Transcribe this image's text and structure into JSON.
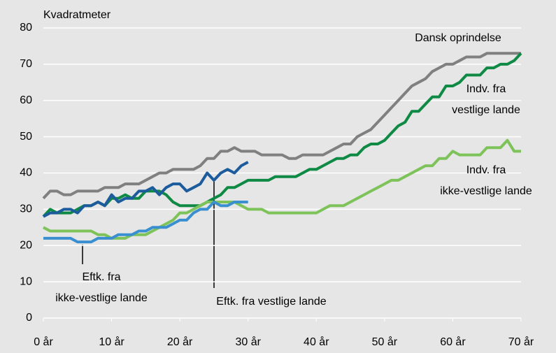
{
  "chart_data": {
    "type": "line",
    "ylabel": "Kvadratmeter",
    "x": [
      0,
      1,
      2,
      3,
      4,
      5,
      6,
      7,
      8,
      9,
      10,
      11,
      12,
      13,
      14,
      15,
      16,
      17,
      18,
      19,
      20,
      21,
      22,
      23,
      24,
      25,
      26,
      27,
      28,
      29,
      30,
      31,
      32,
      33,
      34,
      35,
      36,
      37,
      38,
      39,
      40,
      41,
      42,
      43,
      44,
      45,
      46,
      47,
      48,
      49,
      50,
      51,
      52,
      53,
      54,
      55,
      56,
      57,
      58,
      59,
      60,
      61,
      62,
      63,
      64,
      65,
      66,
      67,
      68,
      69,
      70
    ],
    "xlim": [
      0,
      70
    ],
    "xticks": [
      {
        "value": 0,
        "label": "0 år"
      },
      {
        "value": 10,
        "label": "10 år"
      },
      {
        "value": 20,
        "label": "20 år"
      },
      {
        "value": 30,
        "label": "30 år"
      },
      {
        "value": 40,
        "label": "40 år"
      },
      {
        "value": 50,
        "label": "50 år"
      },
      {
        "value": 60,
        "label": "60 år"
      },
      {
        "value": 70,
        "label": "70 år"
      }
    ],
    "ylim": [
      0,
      80
    ],
    "yticks": [
      0,
      10,
      20,
      30,
      40,
      50,
      60,
      70,
      80
    ],
    "grid": true,
    "series": [
      {
        "name": "Dansk oprindelse",
        "color": "#808080",
        "values": [
          33,
          35,
          35,
          34,
          34,
          35,
          35,
          35,
          35,
          36,
          36,
          36,
          37,
          37,
          37,
          38,
          39,
          40,
          40,
          41,
          41,
          41,
          41,
          42,
          44,
          44,
          46,
          46,
          47,
          46,
          46,
          46,
          45,
          45,
          45,
          45,
          44,
          44,
          45,
          45,
          45,
          45,
          46,
          47,
          48,
          48,
          50,
          51,
          52,
          54,
          56,
          58,
          60,
          62,
          64,
          65,
          66,
          68,
          69,
          70,
          70,
          71,
          72,
          72,
          72,
          73,
          73,
          73,
          73,
          73,
          73
        ]
      },
      {
        "name": "Indv. fra vestlige lande",
        "color": "#0f8a45",
        "values": [
          28,
          30,
          29,
          29,
          29,
          30,
          31,
          31,
          32,
          31,
          33,
          33,
          34,
          33,
          33,
          35,
          35,
          35,
          34,
          32,
          31,
          31,
          31,
          31,
          32,
          33,
          34,
          36,
          36,
          37,
          38,
          38,
          38,
          38,
          39,
          39,
          39,
          39,
          40,
          41,
          41,
          42,
          43,
          44,
          44,
          45,
          45,
          47,
          48,
          48,
          49,
          51,
          53,
          54,
          57,
          57,
          59,
          61,
          61,
          64,
          64,
          65,
          67,
          67,
          67,
          69,
          69,
          70,
          70,
          71,
          73
        ]
      },
      {
        "name": "Indv. fra ikke-vestlige lande",
        "color": "#7dc35a",
        "values": [
          25,
          24,
          24,
          24,
          24,
          24,
          24,
          24,
          23,
          23,
          22,
          22,
          22,
          23,
          23,
          23,
          24,
          25,
          26,
          27,
          29,
          29,
          30,
          31,
          32,
          32,
          32,
          32,
          32,
          31,
          30,
          30,
          30,
          29,
          29,
          29,
          29,
          29,
          29,
          29,
          29,
          30,
          31,
          31,
          31,
          32,
          33,
          34,
          35,
          36,
          37,
          38,
          38,
          39,
          40,
          41,
          42,
          42,
          44,
          44,
          46,
          45,
          45,
          45,
          45,
          47,
          47,
          47,
          49,
          46,
          46
        ]
      },
      {
        "name": "Eftk. fra ikke-vestlige lande",
        "color": "#3a8fd0",
        "values": [
          22,
          22,
          22,
          22,
          22,
          21,
          21,
          21,
          22,
          22,
          22,
          23,
          23,
          23,
          24,
          24,
          25,
          25,
          25,
          26,
          27,
          27,
          29,
          30,
          30,
          32,
          31,
          31,
          32,
          32,
          32,
          null,
          null,
          null,
          null,
          null,
          null,
          null,
          null,
          null,
          null,
          null,
          null,
          null,
          null,
          null,
          null,
          null,
          null,
          null,
          null,
          null,
          null,
          null,
          null,
          null,
          null,
          null,
          null,
          null,
          null,
          null,
          null,
          null,
          null,
          null,
          null,
          null,
          null,
          null,
          null
        ]
      },
      {
        "name": "Eftk. fra vestlige lande",
        "color": "#1d5c9c",
        "values": [
          28,
          29,
          29,
          30,
          30,
          29,
          31,
          31,
          32,
          31,
          34,
          32,
          33,
          33,
          35,
          35,
          36,
          34,
          36,
          37,
          37,
          35,
          36,
          37,
          40,
          38,
          40,
          41,
          40,
          42,
          43,
          null,
          null,
          null,
          null,
          null,
          null,
          null,
          null,
          null,
          null,
          null,
          null,
          null,
          null,
          null,
          null,
          null,
          null,
          null,
          null,
          null,
          null,
          null,
          null,
          null,
          null,
          null,
          null,
          null,
          null,
          null,
          null,
          null,
          null,
          null,
          null,
          null,
          null,
          null,
          null
        ]
      }
    ],
    "annotations": [
      {
        "text": [
          "Dansk oprindelse"
        ]
      },
      {
        "text": [
          "Indv. fra",
          "vestlige lande"
        ]
      },
      {
        "text": [
          "Indv. fra",
          "ikke-vestlige lande"
        ]
      },
      {
        "text": [
          "Eftk. fra",
          "ikke-vestlige lande"
        ]
      },
      {
        "text": [
          "Eftk. fra vestlige lande"
        ]
      }
    ]
  }
}
